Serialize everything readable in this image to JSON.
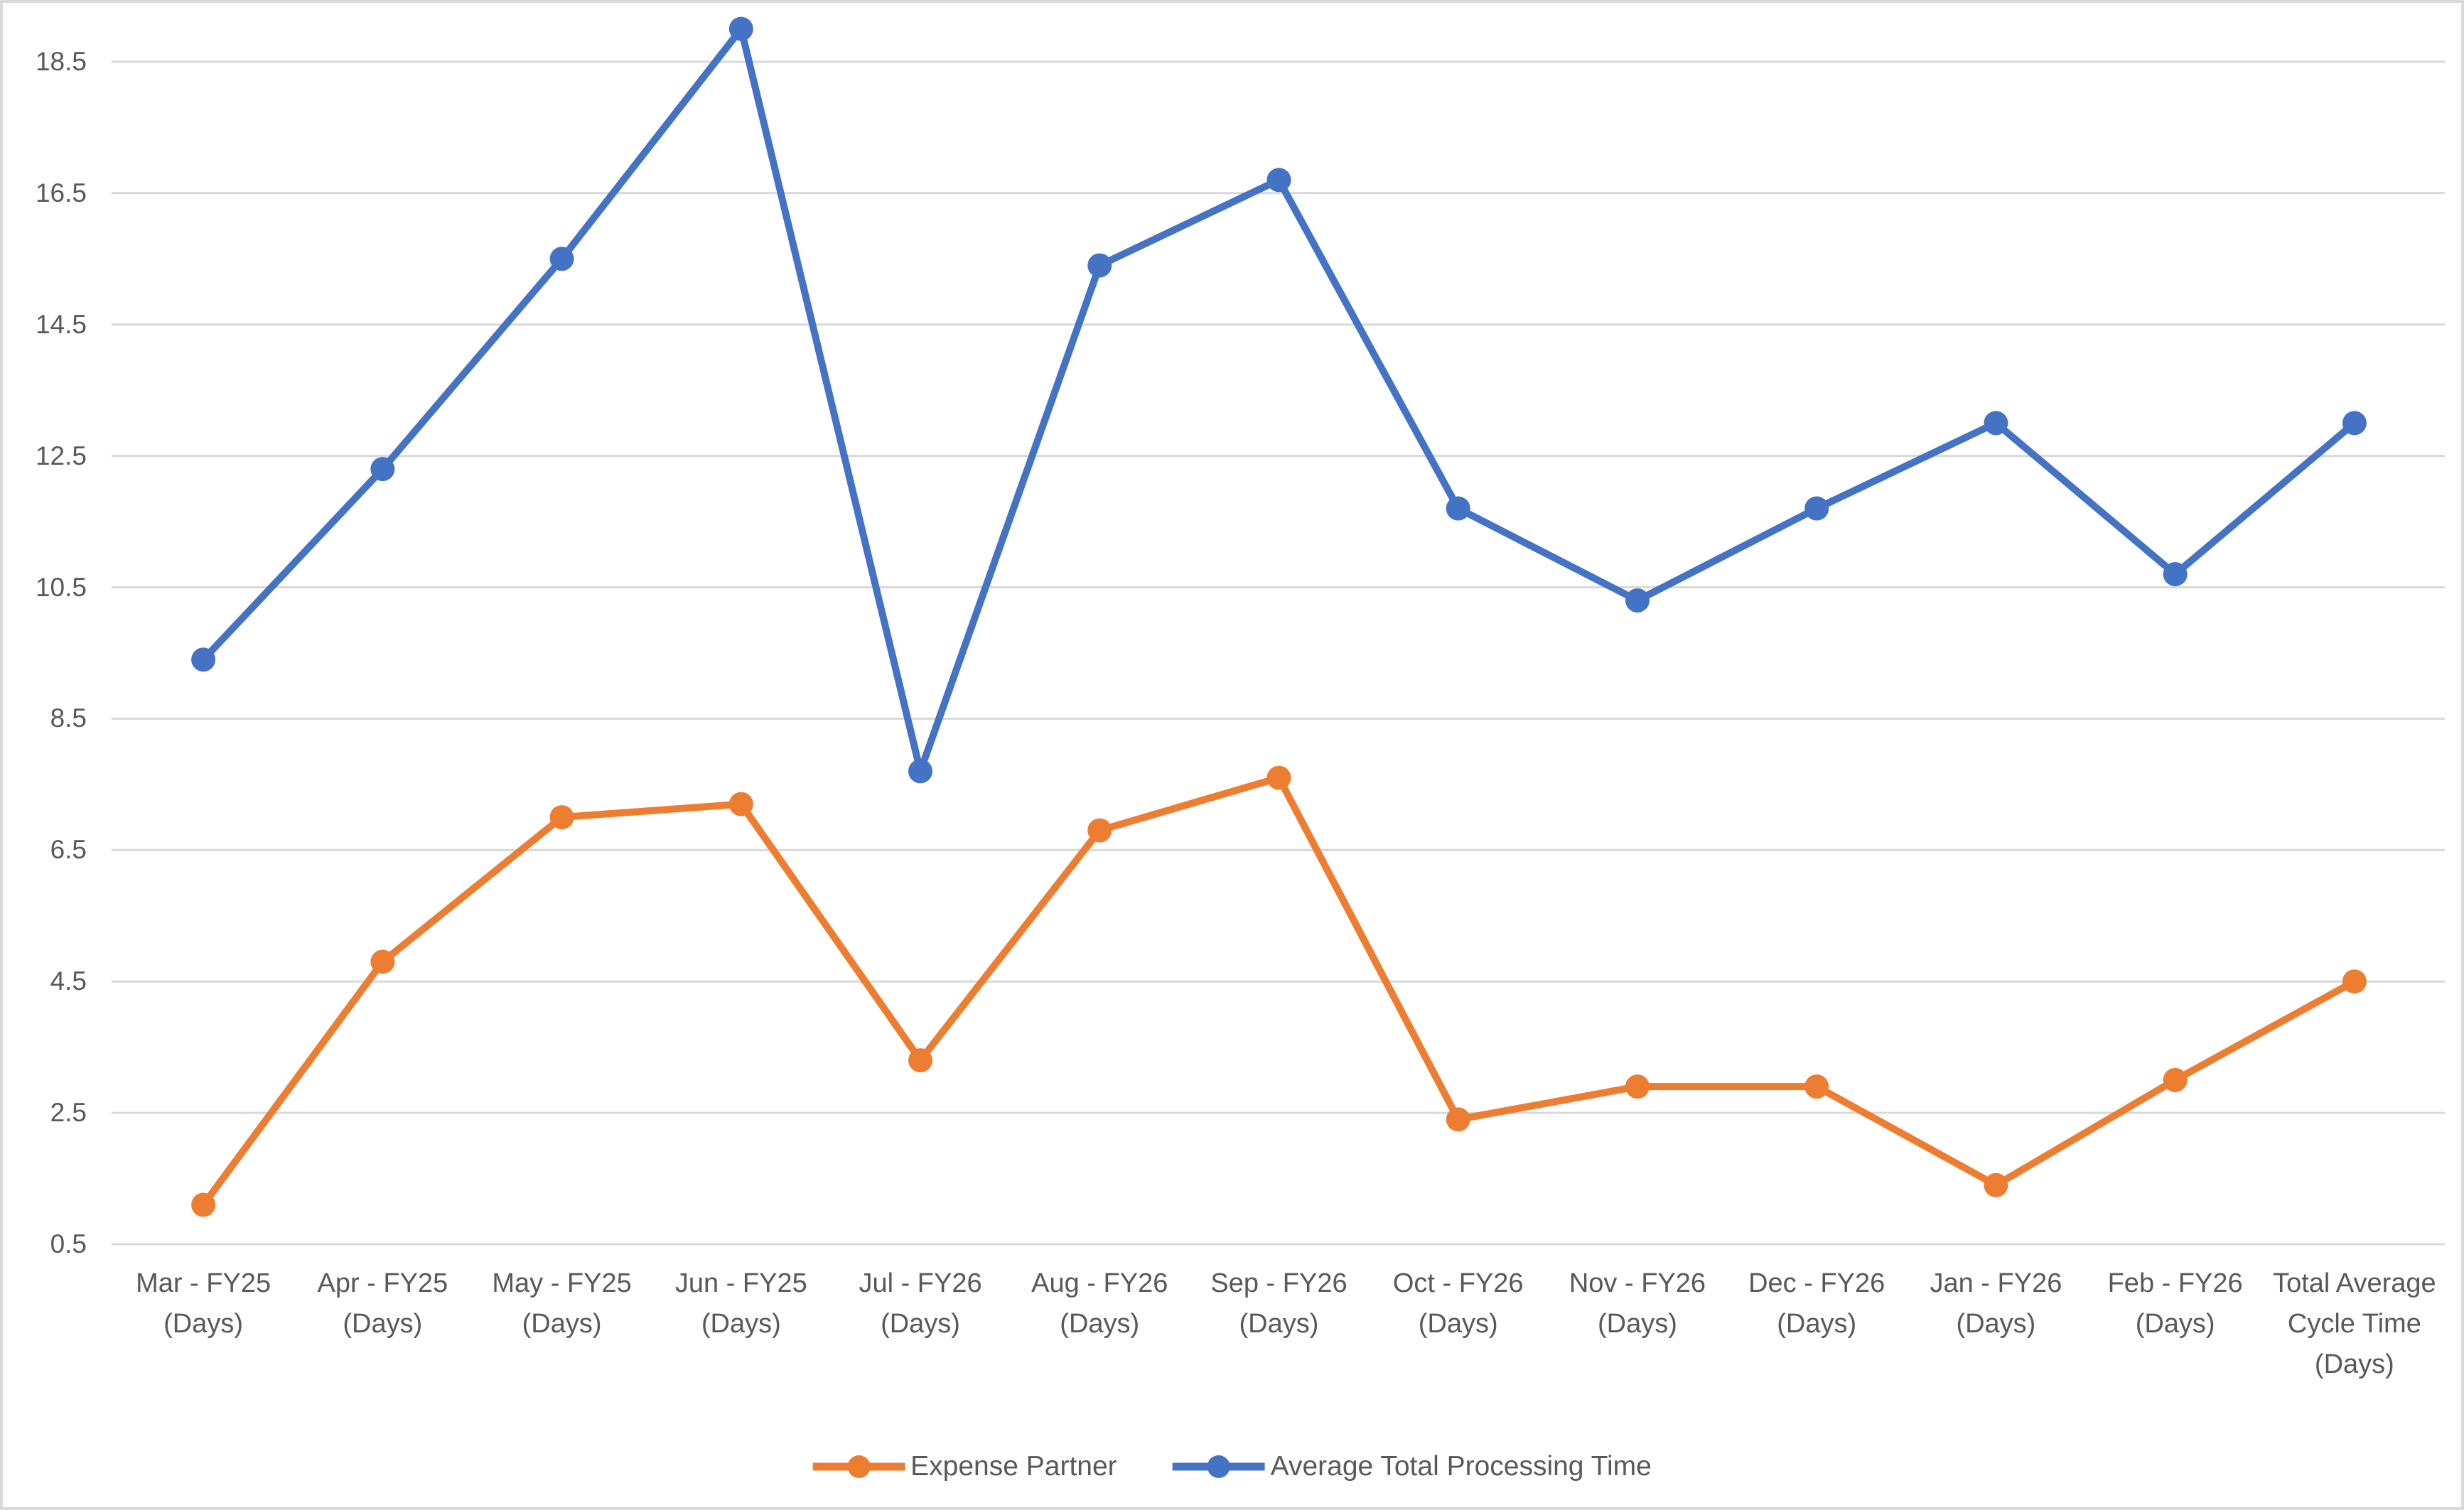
{
  "chart_data": {
    "type": "line",
    "categories": [
      "Mar - FY25 (Days)",
      "Apr - FY25 (Days)",
      "May - FY25 (Days)",
      "Jun - FY25 (Days)",
      "Jul - FY26 (Days)",
      "Aug - FY26 (Days)",
      "Sep - FY26 (Days)",
      "Oct - FY26 (Days)",
      "Nov - FY26 (Days)",
      "Dec - FY26 (Days)",
      "Jan - FY26 (Days)",
      "Feb - FY26 (Days)",
      "Total Average Cycle Time (Days)"
    ],
    "series": [
      {
        "name": "Expense Partner",
        "color": "#ED7D31",
        "values": [
          1.1,
          4.8,
          7.0,
          7.2,
          3.3,
          6.8,
          7.6,
          2.4,
          2.9,
          2.9,
          1.4,
          3.0,
          4.5
        ]
      },
      {
        "name": "Average Total Processing Time",
        "color": "#4472C4",
        "values": [
          9.4,
          12.3,
          15.5,
          19.0,
          7.7,
          15.4,
          16.7,
          11.7,
          10.3,
          11.7,
          13.0,
          10.7,
          13.0
        ]
      }
    ],
    "y_ticks": [
      18.5,
      16.5,
      14.5,
      12.5,
      10.5,
      8.5,
      6.5,
      4.5,
      2.5,
      0.5
    ],
    "ylim": [
      0.5,
      19.4
    ],
    "title": "",
    "xlabel": "",
    "ylabel": "",
    "grid": true,
    "legend_position": "bottom",
    "gridline_color": "#D9D9D9",
    "text_color": "#595959"
  }
}
